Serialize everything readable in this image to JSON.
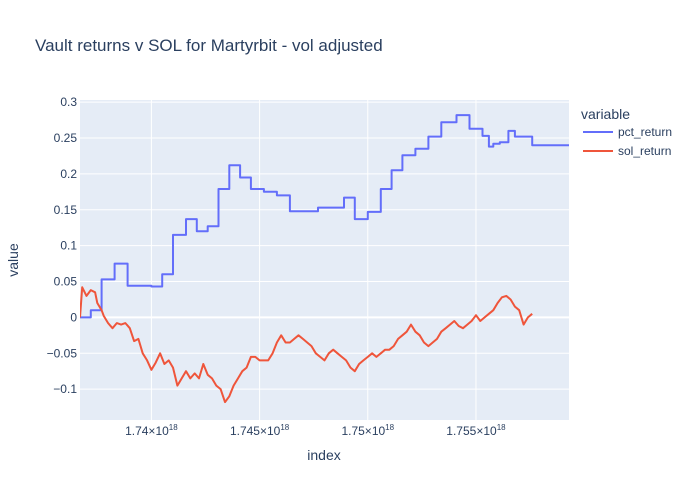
{
  "chart_data": {
    "type": "line",
    "title": "Vault returns v SOL for Martyrbit - vol adjusted",
    "xlabel": "index",
    "ylabel": "value",
    "xlim": [
      1.7367e+18,
      1.7593e+18
    ],
    "ylim": [
      -0.143,
      0.303
    ],
    "grid": true,
    "legend_title": "variable",
    "legend_position": "right",
    "x_ticks": [
      {
        "value": 1.74e+18,
        "mant": "1.74×10",
        "exp": "18"
      },
      {
        "value": 1.745e+18,
        "mant": "1.745×10",
        "exp": "18"
      },
      {
        "value": 1.75e+18,
        "mant": "1.75×10",
        "exp": "18"
      },
      {
        "value": 1.755e+18,
        "mant": "1.755×10",
        "exp": "18"
      }
    ],
    "y_ticks": [
      {
        "value": 0.3,
        "label": "0.3"
      },
      {
        "value": 0.25,
        "label": "0.25"
      },
      {
        "value": 0.2,
        "label": "0.2"
      },
      {
        "value": 0.15,
        "label": "0.15"
      },
      {
        "value": 0.1,
        "label": "0.1"
      },
      {
        "value": 0.05,
        "label": "0.05"
      },
      {
        "value": 0,
        "label": "0"
      },
      {
        "value": -0.05,
        "label": "−0.05"
      },
      {
        "value": -0.1,
        "label": "−0.1"
      }
    ],
    "series": [
      {
        "name": "pct_return",
        "color": "#636efa",
        "step": true,
        "points": [
          [
            1.7367e+18,
            0.0
          ],
          [
            1.7372e+18,
            0.01
          ],
          [
            1.7377e+18,
            0.053
          ],
          [
            1.7383e+18,
            0.075
          ],
          [
            1.7389e+18,
            0.044
          ],
          [
            1.74e+18,
            0.043
          ],
          [
            1.7405e+18,
            0.06
          ],
          [
            1.741e+18,
            0.115
          ],
          [
            1.7416e+18,
            0.137
          ],
          [
            1.7421e+18,
            0.12
          ],
          [
            1.7426e+18,
            0.127
          ],
          [
            1.7431e+18,
            0.179
          ],
          [
            1.7436e+18,
            0.212
          ],
          [
            1.7441e+18,
            0.195
          ],
          [
            1.7446e+18,
            0.179
          ],
          [
            1.7452e+18,
            0.175
          ],
          [
            1.7458e+18,
            0.17
          ],
          [
            1.7464e+18,
            0.148
          ],
          [
            1.7477e+18,
            0.153
          ],
          [
            1.7489e+18,
            0.167
          ],
          [
            1.7494e+18,
            0.137
          ],
          [
            1.75e+18,
            0.147
          ],
          [
            1.7506e+18,
            0.179
          ],
          [
            1.7511e+18,
            0.205
          ],
          [
            1.7516e+18,
            0.226
          ],
          [
            1.7522e+18,
            0.235
          ],
          [
            1.7528e+18,
            0.252
          ],
          [
            1.7534e+18,
            0.272
          ],
          [
            1.7541e+18,
            0.282
          ],
          [
            1.7547e+18,
            0.263
          ],
          [
            1.7553e+18,
            0.253
          ],
          [
            1.7556e+18,
            0.238
          ],
          [
            1.7558e+18,
            0.242
          ],
          [
            1.7561e+18,
            0.244
          ],
          [
            1.7565e+18,
            0.26
          ],
          [
            1.7568e+18,
            0.252
          ],
          [
            1.7576e+18,
            0.24
          ],
          [
            1.7593e+18,
            0.24
          ]
        ]
      },
      {
        "name": "sol_return",
        "color": "#ef553b",
        "step": false,
        "points": [
          [
            1.7367e+18,
            0.0
          ],
          [
            1.7368e+18,
            0.042
          ],
          [
            1.737e+18,
            0.03
          ],
          [
            1.7372e+18,
            0.038
          ],
          [
            1.7374e+18,
            0.035
          ],
          [
            1.7375e+18,
            0.02
          ],
          [
            1.7377e+18,
            0.01
          ],
          [
            1.7378e+18,
            0.002
          ],
          [
            1.738e+18,
            -0.008
          ],
          [
            1.7382e+18,
            -0.015
          ],
          [
            1.7384e+18,
            -0.008
          ],
          [
            1.7386e+18,
            -0.01
          ],
          [
            1.7388e+18,
            -0.008
          ],
          [
            1.739e+18,
            -0.015
          ],
          [
            1.7392e+18,
            -0.033
          ],
          [
            1.7394e+18,
            -0.03
          ],
          [
            1.7396e+18,
            -0.05
          ],
          [
            1.7398e+18,
            -0.06
          ],
          [
            1.74e+18,
            -0.073
          ],
          [
            1.7402e+18,
            -0.063
          ],
          [
            1.7404e+18,
            -0.05
          ],
          [
            1.7406e+18,
            -0.065
          ],
          [
            1.7408e+18,
            -0.06
          ],
          [
            1.741e+18,
            -0.07
          ],
          [
            1.7412e+18,
            -0.095
          ],
          [
            1.7414e+18,
            -0.085
          ],
          [
            1.7416e+18,
            -0.075
          ],
          [
            1.7418e+18,
            -0.085
          ],
          [
            1.742e+18,
            -0.078
          ],
          [
            1.7422e+18,
            -0.085
          ],
          [
            1.7424e+18,
            -0.065
          ],
          [
            1.7426e+18,
            -0.08
          ],
          [
            1.7428e+18,
            -0.085
          ],
          [
            1.743e+18,
            -0.095
          ],
          [
            1.7432e+18,
            -0.1
          ],
          [
            1.7434e+18,
            -0.118
          ],
          [
            1.7436e+18,
            -0.11
          ],
          [
            1.7438e+18,
            -0.095
          ],
          [
            1.744e+18,
            -0.085
          ],
          [
            1.7442e+18,
            -0.075
          ],
          [
            1.7444e+18,
            -0.07
          ],
          [
            1.7446e+18,
            -0.055
          ],
          [
            1.7448e+18,
            -0.055
          ],
          [
            1.745e+18,
            -0.06
          ],
          [
            1.7452e+18,
            -0.06
          ],
          [
            1.7454e+18,
            -0.06
          ],
          [
            1.7456e+18,
            -0.05
          ],
          [
            1.7458e+18,
            -0.035
          ],
          [
            1.746e+18,
            -0.025
          ],
          [
            1.7462e+18,
            -0.035
          ],
          [
            1.7464e+18,
            -0.035
          ],
          [
            1.7466e+18,
            -0.03
          ],
          [
            1.7468e+18,
            -0.025
          ],
          [
            1.747e+18,
            -0.03
          ],
          [
            1.7472e+18,
            -0.035
          ],
          [
            1.7474e+18,
            -0.04
          ],
          [
            1.7476e+18,
            -0.05
          ],
          [
            1.7478e+18,
            -0.055
          ],
          [
            1.748e+18,
            -0.06
          ],
          [
            1.7482e+18,
            -0.05
          ],
          [
            1.7484e+18,
            -0.045
          ],
          [
            1.7486e+18,
            -0.05
          ],
          [
            1.7488e+18,
            -0.055
          ],
          [
            1.749e+18,
            -0.06
          ],
          [
            1.7492e+18,
            -0.07
          ],
          [
            1.7494e+18,
            -0.075
          ],
          [
            1.7496e+18,
            -0.065
          ],
          [
            1.7498e+18,
            -0.06
          ],
          [
            1.75e+18,
            -0.055
          ],
          [
            1.7502e+18,
            -0.05
          ],
          [
            1.7504e+18,
            -0.055
          ],
          [
            1.7506e+18,
            -0.05
          ],
          [
            1.7508e+18,
            -0.045
          ],
          [
            1.751e+18,
            -0.045
          ],
          [
            1.7512e+18,
            -0.04
          ],
          [
            1.7514e+18,
            -0.03
          ],
          [
            1.7516e+18,
            -0.025
          ],
          [
            1.7518e+18,
            -0.02
          ],
          [
            1.752e+18,
            -0.01
          ],
          [
            1.7522e+18,
            -0.02
          ],
          [
            1.7524e+18,
            -0.025
          ],
          [
            1.7526e+18,
            -0.035
          ],
          [
            1.7528e+18,
            -0.04
          ],
          [
            1.753e+18,
            -0.035
          ],
          [
            1.7532e+18,
            -0.03
          ],
          [
            1.7534e+18,
            -0.02
          ],
          [
            1.7536e+18,
            -0.015
          ],
          [
            1.7538e+18,
            -0.01
          ],
          [
            1.754e+18,
            -0.005
          ],
          [
            1.7542e+18,
            -0.012
          ],
          [
            1.7544e+18,
            -0.015
          ],
          [
            1.7546e+18,
            -0.01
          ],
          [
            1.7548e+18,
            -0.005
          ],
          [
            1.755e+18,
            0.003
          ],
          [
            1.7552e+18,
            -0.005
          ],
          [
            1.7554e+18,
            0.0
          ],
          [
            1.7556e+18,
            0.005
          ],
          [
            1.7558e+18,
            0.01
          ],
          [
            1.756e+18,
            0.02
          ],
          [
            1.7562e+18,
            0.028
          ],
          [
            1.7564e+18,
            0.03
          ],
          [
            1.7566e+18,
            0.025
          ],
          [
            1.7568e+18,
            0.015
          ],
          [
            1.757e+18,
            0.01
          ],
          [
            1.7572e+18,
            -0.01
          ],
          [
            1.7574e+18,
            0.0
          ],
          [
            1.7576e+18,
            0.005
          ]
        ]
      }
    ]
  }
}
